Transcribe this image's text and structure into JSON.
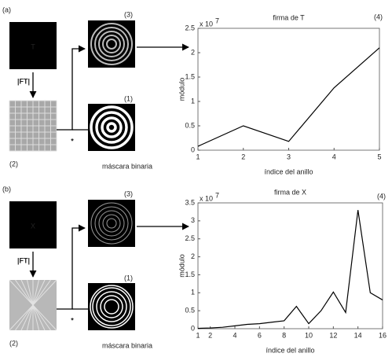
{
  "panels": [
    {
      "label": "(a)",
      "letter": "T",
      "ft": "|FT|",
      "ft_index": "(2)",
      "result_index": "(3)",
      "mask_index": "(1)",
      "chart_index": "(4)",
      "mask_caption": "máscara binaria",
      "operator": "*"
    },
    {
      "label": "(b)",
      "letter": "X",
      "ft": "|FT|",
      "ft_index": "(2)",
      "result_index": "(3)",
      "mask_index": "(1)",
      "chart_index": "(4)",
      "mask_caption": "máscara binaria",
      "operator": "*"
    }
  ],
  "chart_data": [
    {
      "type": "line",
      "title": "firma de T",
      "x_label": "índice del anillo",
      "y_label": "módulo",
      "y_scale": "x 10",
      "y_scale_power": "7",
      "color": "#000000",
      "x": [
        1,
        2,
        3,
        4,
        5
      ],
      "values": [
        0.08,
        0.5,
        0.18,
        1.28,
        2.1
      ],
      "xlim": [
        1,
        5
      ],
      "xticks": [
        1,
        2,
        3,
        4,
        5
      ],
      "ylim": [
        0,
        2.5
      ],
      "yticks": [
        0,
        0.5,
        1,
        1.5,
        2,
        2.5
      ]
    },
    {
      "type": "line",
      "title": "firma de X",
      "x_label": "índice del anillo",
      "y_label": "módulo",
      "y_scale": "x 10",
      "y_scale_power": "7",
      "color": "#000000",
      "x": [
        1,
        2,
        3,
        4,
        5,
        6,
        7,
        8,
        9,
        10,
        11,
        12,
        13,
        14,
        15,
        16
      ],
      "values": [
        0.01,
        0.02,
        0.04,
        0.08,
        0.12,
        0.14,
        0.18,
        0.22,
        0.62,
        0.14,
        0.5,
        1.02,
        0.45,
        3.3,
        1.0,
        0.8
      ],
      "xlim": [
        1,
        16
      ],
      "xticks": [
        1,
        2,
        4,
        6,
        8,
        10,
        12,
        14,
        16
      ],
      "ylim": [
        0,
        3.5
      ],
      "yticks": [
        0,
        0.5,
        1,
        1.5,
        2,
        2.5,
        3,
        3.5
      ]
    }
  ]
}
